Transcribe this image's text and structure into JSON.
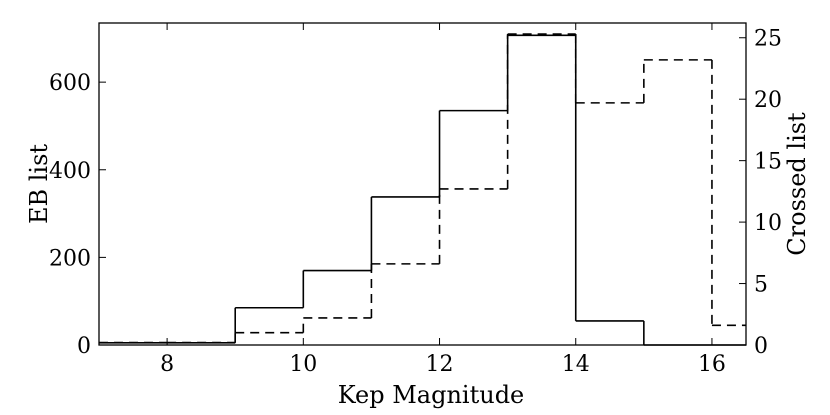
{
  "chart_data": {
    "type": "step",
    "xlabel": "Kep Magnitude",
    "ylabel": "EB list",
    "ylabel_right": "Crossed list",
    "xlim": [
      7,
      16.5
    ],
    "ylim": [
      0,
      735
    ],
    "ylim_right": [
      0,
      26.2
    ],
    "xticks": [
      8,
      10,
      12,
      14,
      16
    ],
    "yticks": [
      0,
      200,
      400,
      600
    ],
    "yticks_right": [
      0,
      5,
      10,
      15,
      20,
      25
    ],
    "grid": false,
    "bin_edges": [
      7,
      8,
      9,
      10,
      11,
      12,
      13,
      14,
      15,
      16,
      16.5
    ],
    "series": [
      {
        "axis": "left",
        "line_style": "solid",
        "values": [
          5,
          5,
          85,
          170,
          338,
          535,
          707,
          55,
          0,
          0
        ]
      },
      {
        "axis": "right",
        "line_style": "dashed",
        "values": [
          0.2,
          0.2,
          1.0,
          2.2,
          6.6,
          12.7,
          25.3,
          19.7,
          23.2,
          1.6
        ]
      }
    ]
  }
}
